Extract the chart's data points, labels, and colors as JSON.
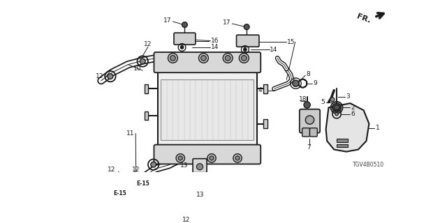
{
  "bg_color": "#ffffff",
  "line_color": "#1a1a1a",
  "diagram_code": "TGV4B0510",
  "fr_label": "FR."
}
